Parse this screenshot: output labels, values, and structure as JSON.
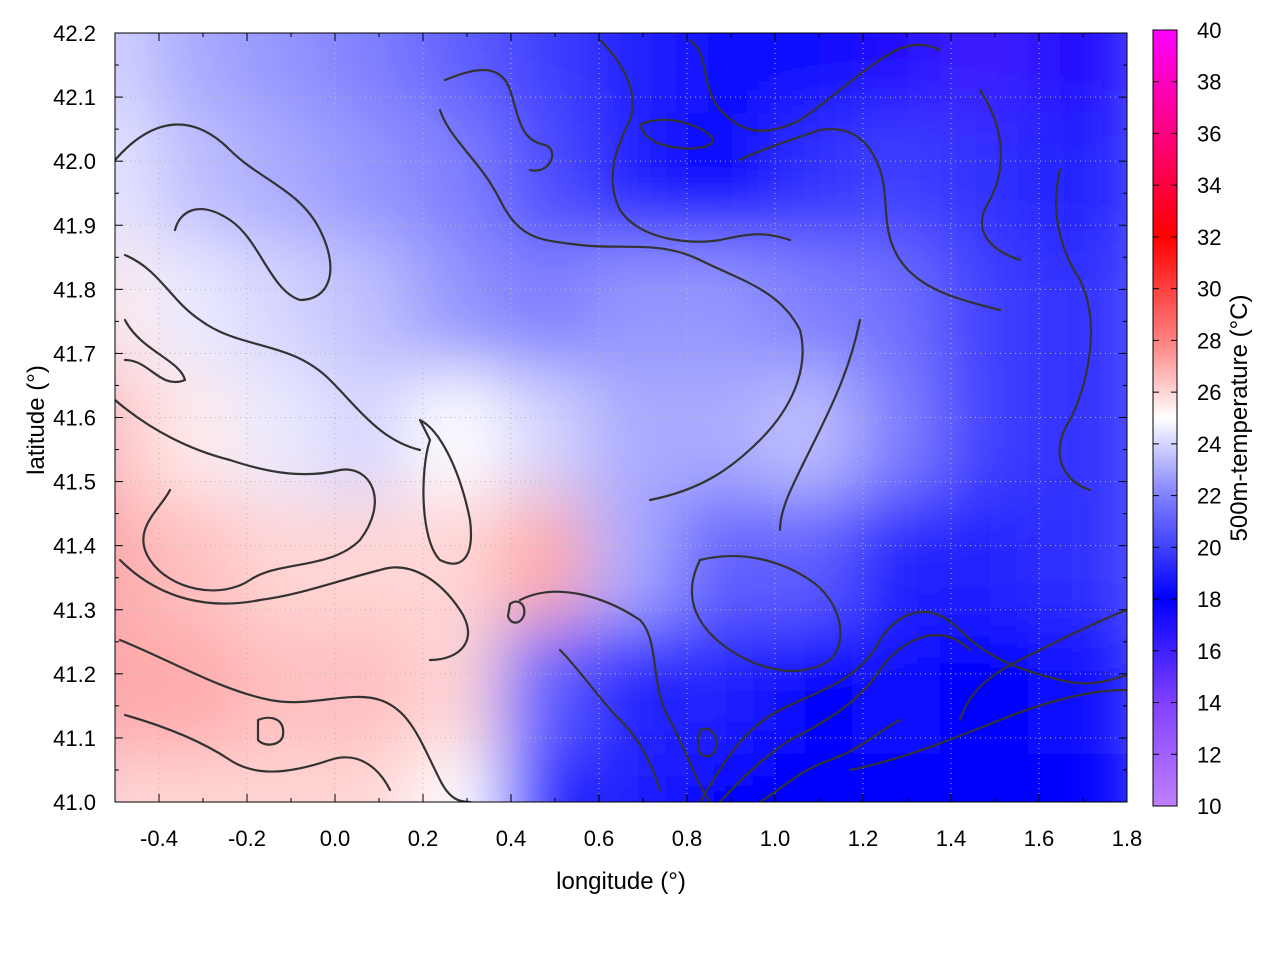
{
  "chart_data": {
    "type": "heatmap",
    "title": "",
    "xlabel": "longitude (°)",
    "ylabel": "latitude (°)",
    "colorbar_label": "500m-temperature (°C)",
    "xlim": [
      -0.5,
      1.8
    ],
    "ylim": [
      41.0,
      42.2
    ],
    "clim": [
      10,
      40
    ],
    "x_ticks": [
      -0.4,
      -0.2,
      0.0,
      0.2,
      0.4,
      0.6,
      0.8,
      1.0,
      1.2,
      1.4,
      1.6,
      1.8
    ],
    "x_tick_labels": [
      "-0.4",
      "-0.2",
      "0.0",
      "0.2",
      "0.4",
      "0.6",
      "0.8",
      "1.0",
      "1.2",
      "1.4",
      "1.6",
      "1.8"
    ],
    "y_ticks": [
      41.0,
      41.1,
      41.2,
      41.3,
      41.4,
      41.5,
      41.6,
      41.7,
      41.8,
      41.9,
      42.0,
      42.1,
      42.2
    ],
    "y_tick_labels": [
      "41.0",
      "41.1",
      "41.2",
      "41.3",
      "41.4",
      "41.5",
      "41.6",
      "41.7",
      "41.8",
      "41.9",
      "42.0",
      "42.1",
      "42.2"
    ],
    "colorbar_ticks": [
      10,
      12,
      14,
      16,
      18,
      20,
      22,
      24,
      26,
      28,
      30,
      32,
      34,
      36,
      38,
      40
    ],
    "colorbar_tick_labels": [
      "10",
      "12",
      "14",
      "16",
      "18",
      "20",
      "22",
      "24",
      "26",
      "28",
      "30",
      "32",
      "34",
      "36",
      "38",
      "40"
    ],
    "colormap_stops": [
      {
        "value": 10,
        "color": "#c080ff"
      },
      {
        "value": 14,
        "color": "#8040ff"
      },
      {
        "value": 18,
        "color": "#0000ff"
      },
      {
        "value": 22,
        "color": "#8080ff"
      },
      {
        "value": 25,
        "color": "#ffffff"
      },
      {
        "value": 28,
        "color": "#ff8080"
      },
      {
        "value": 32,
        "color": "#ff0000"
      },
      {
        "value": 36,
        "color": "#ff0080"
      },
      {
        "value": 40,
        "color": "#ff00ff"
      }
    ],
    "regions": [
      {
        "lon": -0.5,
        "lat": 41.0,
        "value": 26
      },
      {
        "lon": -0.3,
        "lat": 41.0,
        "value": 26
      },
      {
        "lon": -0.1,
        "lat": 41.0,
        "value": 26
      },
      {
        "lon": 0.1,
        "lat": 41.0,
        "value": 26
      },
      {
        "lon": 0.3,
        "lat": 41.0,
        "value": 25
      },
      {
        "lon": 0.5,
        "lat": 41.0,
        "value": 19
      },
      {
        "lon": 0.7,
        "lat": 41.0,
        "value": 19
      },
      {
        "lon": 0.9,
        "lat": 41.0,
        "value": 18
      },
      {
        "lon": 1.1,
        "lat": 41.0,
        "value": 18
      },
      {
        "lon": 1.3,
        "lat": 41.0,
        "value": 18
      },
      {
        "lon": 1.5,
        "lat": 41.0,
        "value": 18
      },
      {
        "lon": 1.7,
        "lat": 41.0,
        "value": 18
      },
      {
        "lon": -0.5,
        "lat": 41.2,
        "value": 27
      },
      {
        "lon": -0.3,
        "lat": 41.2,
        "value": 27
      },
      {
        "lon": -0.1,
        "lat": 41.2,
        "value": 26.5
      },
      {
        "lon": 0.1,
        "lat": 41.2,
        "value": 26.5
      },
      {
        "lon": 0.3,
        "lat": 41.2,
        "value": 26
      },
      {
        "lon": 0.5,
        "lat": 41.2,
        "value": 21
      },
      {
        "lon": 0.7,
        "lat": 41.2,
        "value": 19
      },
      {
        "lon": 0.9,
        "lat": 41.2,
        "value": 19
      },
      {
        "lon": 1.1,
        "lat": 41.2,
        "value": 18
      },
      {
        "lon": 1.3,
        "lat": 41.2,
        "value": 17.5
      },
      {
        "lon": 1.5,
        "lat": 41.2,
        "value": 18
      },
      {
        "lon": 1.7,
        "lat": 41.2,
        "value": 18.5
      },
      {
        "lon": -0.5,
        "lat": 41.4,
        "value": 27
      },
      {
        "lon": -0.3,
        "lat": 41.4,
        "value": 26.5
      },
      {
        "lon": -0.1,
        "lat": 41.4,
        "value": 26
      },
      {
        "lon": 0.1,
        "lat": 41.4,
        "value": 26
      },
      {
        "lon": 0.3,
        "lat": 41.4,
        "value": 26
      },
      {
        "lon": 0.5,
        "lat": 41.4,
        "value": 27
      },
      {
        "lon": 0.7,
        "lat": 41.4,
        "value": 23
      },
      {
        "lon": 0.9,
        "lat": 41.4,
        "value": 21
      },
      {
        "lon": 1.1,
        "lat": 41.4,
        "value": 21
      },
      {
        "lon": 1.3,
        "lat": 41.4,
        "value": 19
      },
      {
        "lon": 1.5,
        "lat": 41.4,
        "value": 19
      },
      {
        "lon": 1.7,
        "lat": 41.4,
        "value": 19.5
      },
      {
        "lon": -0.5,
        "lat": 41.6,
        "value": 26.5
      },
      {
        "lon": -0.3,
        "lat": 41.6,
        "value": 25.5
      },
      {
        "lon": -0.1,
        "lat": 41.6,
        "value": 24.5
      },
      {
        "lon": 0.1,
        "lat": 41.6,
        "value": 24
      },
      {
        "lon": 0.3,
        "lat": 41.6,
        "value": 25
      },
      {
        "lon": 0.5,
        "lat": 41.6,
        "value": 24
      },
      {
        "lon": 0.7,
        "lat": 41.6,
        "value": 23
      },
      {
        "lon": 0.9,
        "lat": 41.6,
        "value": 23
      },
      {
        "lon": 1.1,
        "lat": 41.6,
        "value": 23.5
      },
      {
        "lon": 1.3,
        "lat": 41.6,
        "value": 22
      },
      {
        "lon": 1.5,
        "lat": 41.6,
        "value": 20
      },
      {
        "lon": 1.7,
        "lat": 41.6,
        "value": 19.5
      },
      {
        "lon": -0.5,
        "lat": 41.8,
        "value": 25.5
      },
      {
        "lon": -0.3,
        "lat": 41.8,
        "value": 24.5
      },
      {
        "lon": -0.1,
        "lat": 41.8,
        "value": 24
      },
      {
        "lon": 0.1,
        "lat": 41.8,
        "value": 23.5
      },
      {
        "lon": 0.3,
        "lat": 41.8,
        "value": 22.5
      },
      {
        "lon": 0.5,
        "lat": 41.8,
        "value": 22
      },
      {
        "lon": 0.7,
        "lat": 41.8,
        "value": 22.5
      },
      {
        "lon": 0.9,
        "lat": 41.8,
        "value": 22.5
      },
      {
        "lon": 1.1,
        "lat": 41.8,
        "value": 22
      },
      {
        "lon": 1.3,
        "lat": 41.8,
        "value": 21.5
      },
      {
        "lon": 1.5,
        "lat": 41.8,
        "value": 20
      },
      {
        "lon": 1.7,
        "lat": 41.8,
        "value": 19.5
      },
      {
        "lon": -0.5,
        "lat": 42.0,
        "value": 24.5
      },
      {
        "lon": -0.3,
        "lat": 42.0,
        "value": 23.5
      },
      {
        "lon": -0.1,
        "lat": 42.0,
        "value": 23
      },
      {
        "lon": 0.1,
        "lat": 42.0,
        "value": 22.5
      },
      {
        "lon": 0.3,
        "lat": 42.0,
        "value": 22
      },
      {
        "lon": 0.5,
        "lat": 42.0,
        "value": 20.5
      },
      {
        "lon": 0.7,
        "lat": 42.0,
        "value": 19
      },
      {
        "lon": 0.9,
        "lat": 42.0,
        "value": 18
      },
      {
        "lon": 1.1,
        "lat": 42.0,
        "value": 19.5
      },
      {
        "lon": 1.3,
        "lat": 42.0,
        "value": 20
      },
      {
        "lon": 1.5,
        "lat": 42.0,
        "value": 19.5
      },
      {
        "lon": 1.7,
        "lat": 42.0,
        "value": 19
      },
      {
        "lon": -0.5,
        "lat": 42.2,
        "value": 24
      },
      {
        "lon": -0.3,
        "lat": 42.2,
        "value": 23
      },
      {
        "lon": -0.1,
        "lat": 42.2,
        "value": 22.5
      },
      {
        "lon": 0.1,
        "lat": 42.2,
        "value": 22
      },
      {
        "lon": 0.3,
        "lat": 42.2,
        "value": 21
      },
      {
        "lon": 0.5,
        "lat": 42.2,
        "value": 20
      },
      {
        "lon": 0.7,
        "lat": 42.2,
        "value": 19
      },
      {
        "lon": 0.9,
        "lat": 42.2,
        "value": 18.5
      },
      {
        "lon": 1.1,
        "lat": 42.2,
        "value": 17.5
      },
      {
        "lon": 1.3,
        "lat": 42.2,
        "value": 17
      },
      {
        "lon": 1.5,
        "lat": 42.2,
        "value": 16
      },
      {
        "lon": 1.7,
        "lat": 42.2,
        "value": 17
      }
    ],
    "contour_lines": "present (approximate)",
    "grid": "dotted"
  }
}
